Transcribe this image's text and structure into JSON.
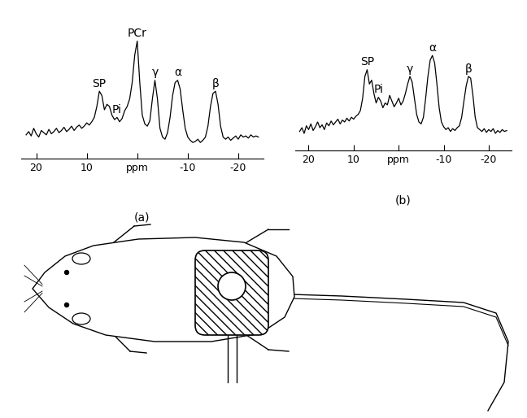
{
  "chart_data": [
    {
      "type": "line",
      "title": "(a)",
      "color": "#000000",
      "tick_labels": "x",
      "xlim": [
        23,
        -25
      ],
      "ylim": [
        0,
        115
      ],
      "xticks": [
        20,
        10,
        {
          "value": 0,
          "label": "ppm"
        },
        -10,
        -20
      ],
      "x": [
        22,
        21.5,
        21,
        20.5,
        20,
        19.5,
        19,
        18.5,
        18,
        17.5,
        17,
        16.5,
        16,
        15.5,
        15,
        14.5,
        14,
        13.5,
        13,
        12.5,
        12,
        11.5,
        11,
        10.5,
        10,
        9.5,
        9,
        8.5,
        8,
        7.5,
        7,
        6.5,
        6,
        5.5,
        5,
        4.5,
        4,
        3.5,
        3,
        2.5,
        2,
        1.5,
        1,
        0.5,
        0,
        -0.5,
        -1,
        -1.5,
        -2,
        -2.5,
        -3,
        -3.5,
        -4,
        -4.5,
        -5,
        -5.5,
        -6,
        -6.5,
        -7,
        -7.5,
        -8,
        -8.5,
        -9,
        -9.5,
        -10,
        -10.5,
        -11,
        -11.5,
        -12,
        -12.5,
        -13,
        -13.5,
        -14,
        -14.5,
        -15,
        -15.5,
        -16,
        -16.5,
        -17,
        -17.5,
        -18,
        -18.5,
        -19,
        -19.5,
        -20,
        -20.5,
        -21,
        -21.5,
        -22,
        -22.5,
        -23,
        -23.5,
        -24
      ],
      "values": [
        22,
        25,
        21,
        28,
        23,
        20,
        26,
        24,
        22,
        27,
        23,
        25,
        28,
        24,
        26,
        29,
        25,
        27,
        30,
        26,
        29,
        31,
        28,
        30,
        33,
        31,
        34,
        38,
        48,
        62,
        58,
        45,
        50,
        48,
        40,
        36,
        38,
        34,
        37,
        44,
        48,
        55,
        70,
        95,
        108,
        70,
        40,
        32,
        30,
        35,
        55,
        72,
        55,
        28,
        20,
        18,
        24,
        38,
        58,
        70,
        72,
        64,
        45,
        28,
        20,
        17,
        15,
        16,
        18,
        15,
        17,
        20,
        30,
        48,
        60,
        62,
        50,
        30,
        20,
        18,
        20,
        17,
        19,
        21,
        18,
        22,
        20,
        21,
        19,
        22,
        20,
        21,
        20
      ],
      "peaks": [
        {
          "label": "SP",
          "x": 7.5
        },
        {
          "label": "Pi",
          "x": 4
        },
        {
          "label": "PCr",
          "x": 0
        },
        {
          "label": "γ",
          "x": -3.5
        },
        {
          "label": "α",
          "x": -8
        },
        {
          "label": "β",
          "x": -15.5
        }
      ]
    },
    {
      "type": "line",
      "title": "(b)",
      "color": "#000000",
      "tick_labels": "x",
      "xlim": [
        23,
        -25
      ],
      "ylim": [
        0,
        110
      ],
      "xticks": [
        20,
        10,
        {
          "value": 0,
          "label": "ppm"
        },
        -10,
        -20
      ],
      "x": [
        22,
        21.5,
        21,
        20.5,
        20,
        19.5,
        19,
        18.5,
        18,
        17.5,
        17,
        16.5,
        16,
        15.5,
        15,
        14.5,
        14,
        13.5,
        13,
        12.5,
        12,
        11.5,
        11,
        10.5,
        10,
        9.5,
        9,
        8.5,
        8,
        7.5,
        7,
        6.5,
        6,
        5.5,
        5,
        4.5,
        4,
        3.5,
        3,
        2.5,
        2,
        1.5,
        1,
        0.5,
        0,
        -0.5,
        -1,
        -1.5,
        -2,
        -2.5,
        -3,
        -3.5,
        -4,
        -4.5,
        -5,
        -5.5,
        -6,
        -6.5,
        -7,
        -7.5,
        -8,
        -8.5,
        -9,
        -9.5,
        -10,
        -10.5,
        -11,
        -11.5,
        -12,
        -12.5,
        -13,
        -13.5,
        -14,
        -14.5,
        -15,
        -15.5,
        -16,
        -16.5,
        -17,
        -17.5,
        -18,
        -18.5,
        -19,
        -19.5,
        -20,
        -20.5,
        -21,
        -21.5,
        -22,
        -22.5,
        -23,
        -23.5,
        -24
      ],
      "values": [
        20,
        24,
        18,
        26,
        22,
        28,
        21,
        25,
        30,
        24,
        27,
        22,
        29,
        26,
        31,
        27,
        30,
        33,
        28,
        32,
        30,
        34,
        31,
        35,
        33,
        36,
        38,
        42,
        55,
        78,
        85,
        70,
        74,
        60,
        50,
        56,
        52,
        45,
        50,
        48,
        58,
        52,
        46,
        50,
        55,
        48,
        52,
        60,
        70,
        78,
        72,
        55,
        38,
        30,
        28,
        35,
        55,
        78,
        95,
        100,
        92,
        70,
        45,
        30,
        25,
        22,
        24,
        20,
        23,
        21,
        24,
        26,
        35,
        52,
        68,
        78,
        76,
        58,
        35,
        24,
        22,
        20,
        23,
        19,
        22,
        20,
        23,
        18,
        21,
        19,
        22,
        20,
        21
      ],
      "peaks": [
        {
          "label": "SP",
          "x": 7
        },
        {
          "label": "Pi",
          "x": 4.5
        },
        {
          "label": "γ",
          "x": -2.5
        },
        {
          "label": "α",
          "x": -7.5
        },
        {
          "label": "β",
          "x": -15.5
        }
      ]
    }
  ]
}
